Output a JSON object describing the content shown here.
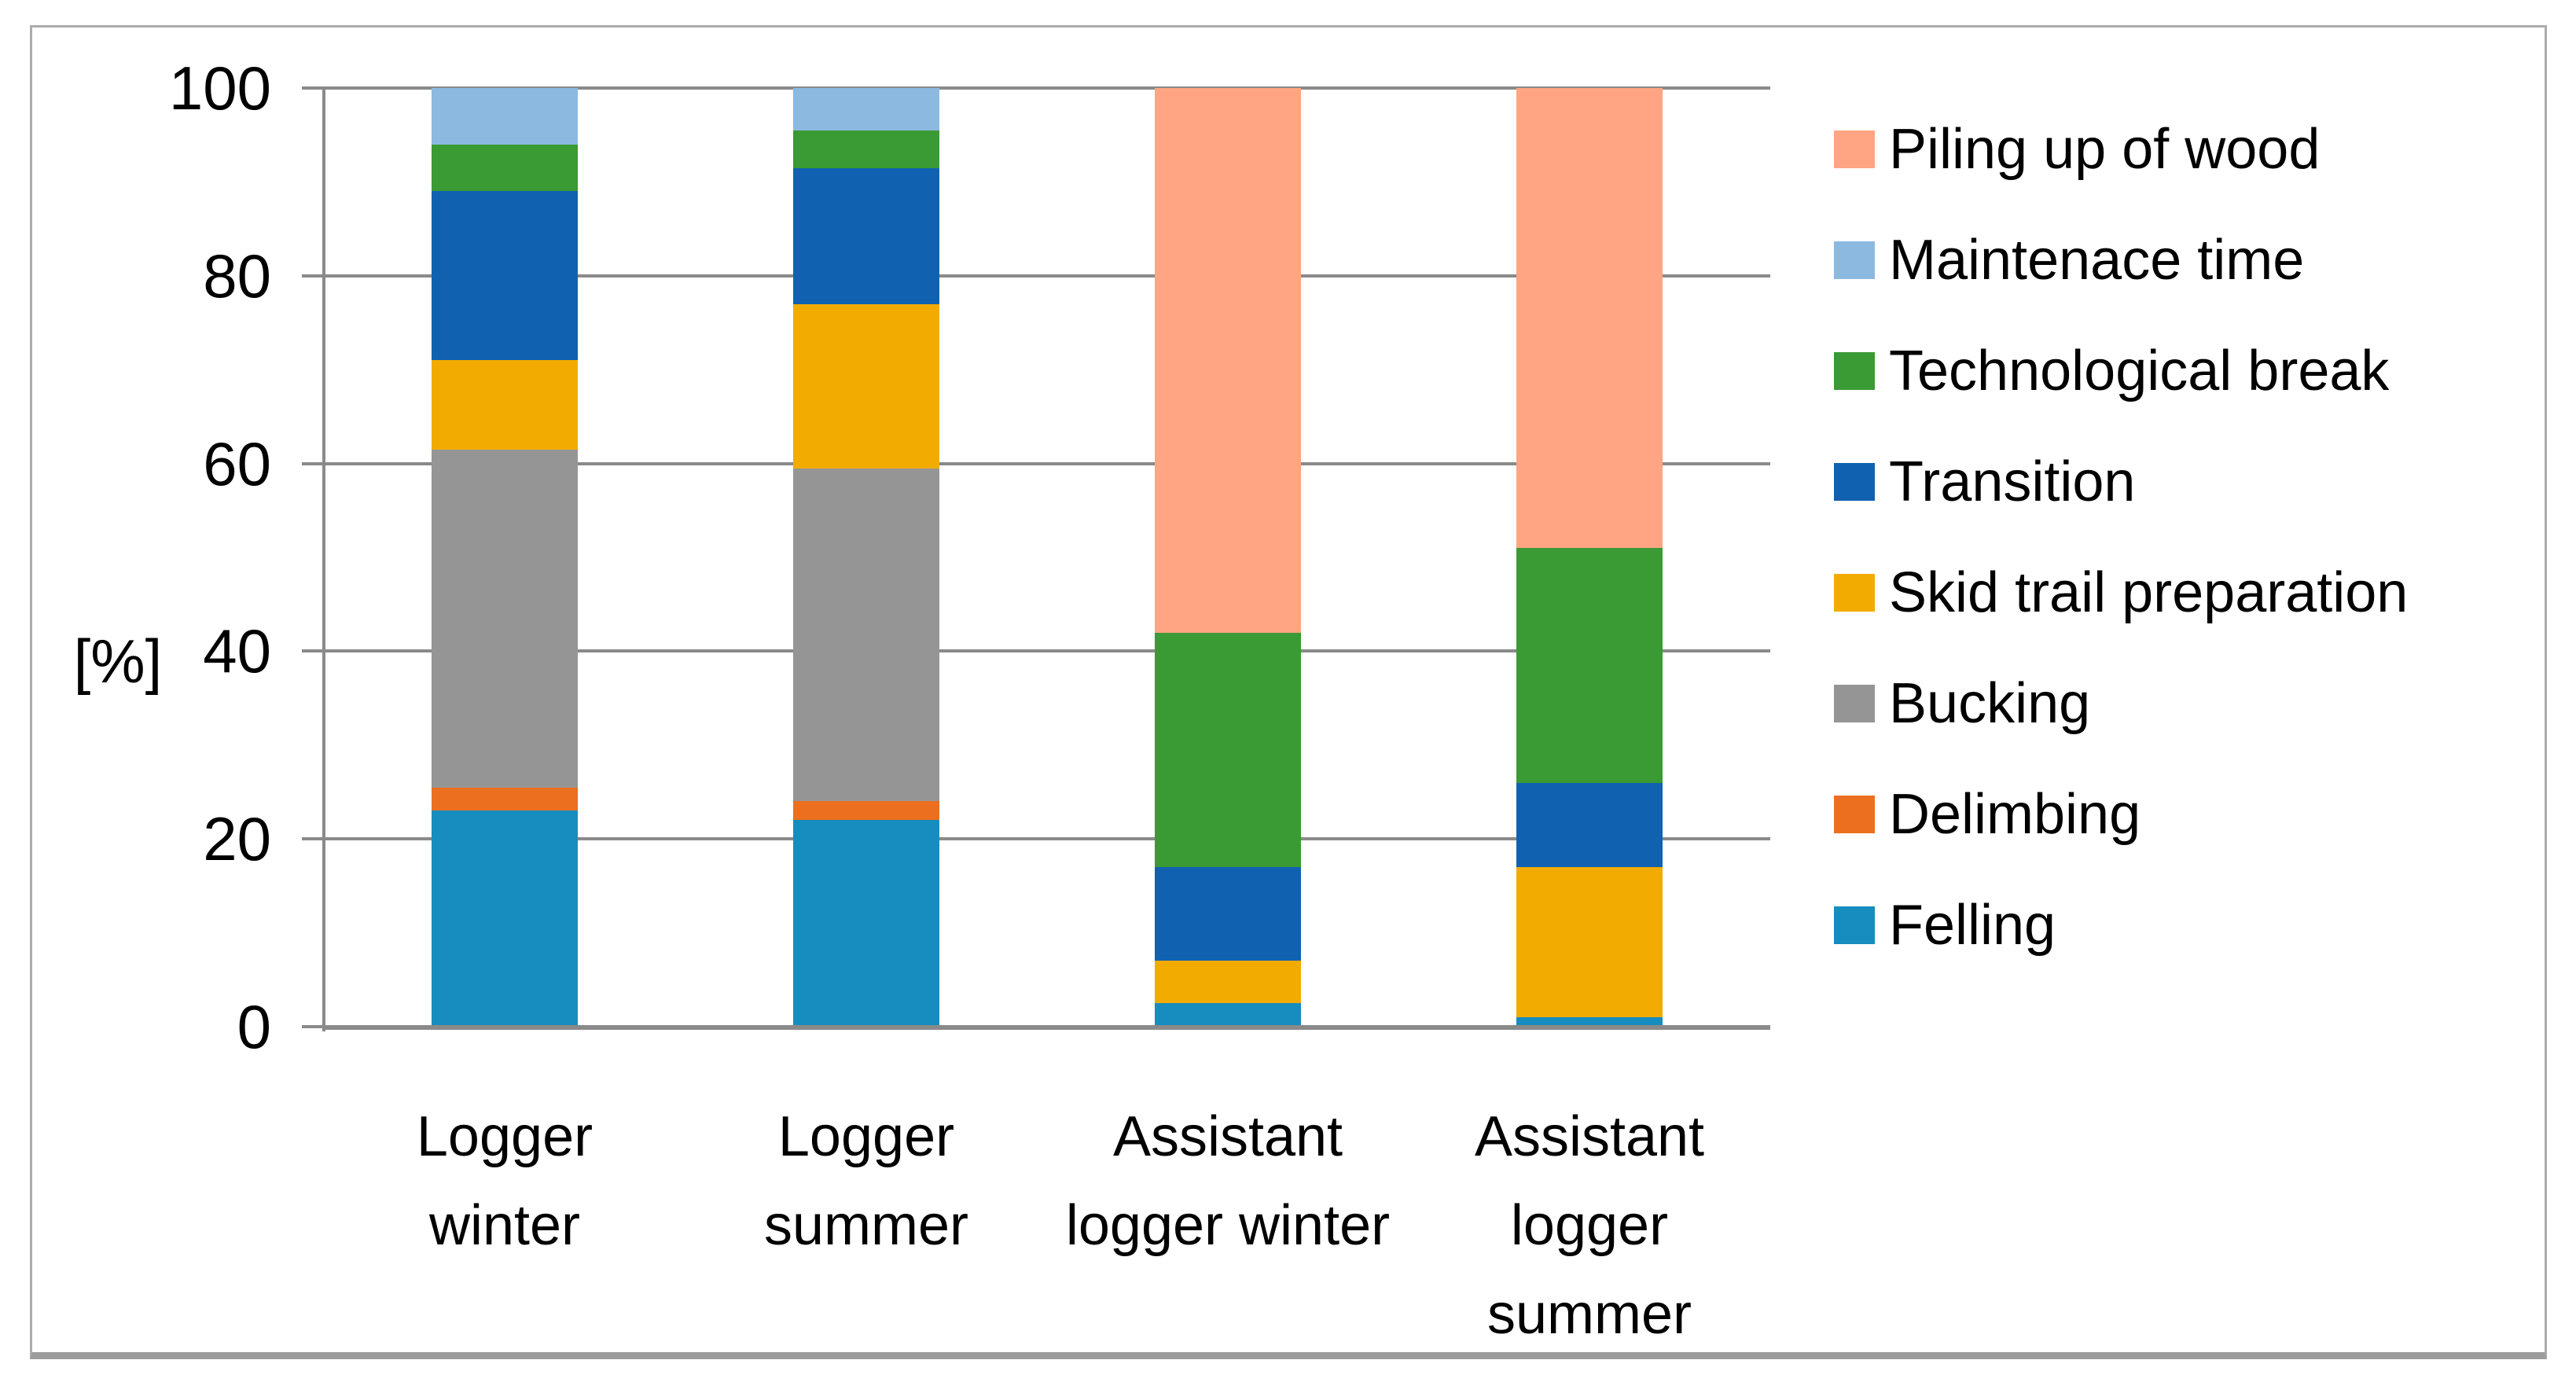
{
  "chart_data": {
    "type": "bar",
    "stacked": true,
    "title": "",
    "ylabel": "[%]",
    "ylim": [
      0,
      100
    ],
    "yticks": [
      0,
      20,
      40,
      60,
      80,
      100
    ],
    "grid": true,
    "legend_position": "right",
    "categories": [
      "Logger winter",
      "Logger summer",
      "Assistant logger winter",
      "Assistant logger summer"
    ],
    "categories_lines": [
      [
        "Logger",
        "winter"
      ],
      [
        "Logger",
        "summer"
      ],
      [
        "Assistant",
        "logger winter"
      ],
      [
        "Assistant",
        "logger",
        "summer"
      ]
    ],
    "series": [
      {
        "name": "Felling",
        "color": "#168DBE",
        "values": [
          23,
          22,
          2.5,
          1
        ]
      },
      {
        "name": "Delimbing",
        "color": "#EB6F1E",
        "values": [
          2.5,
          2,
          0,
          0
        ]
      },
      {
        "name": "Bucking",
        "color": "#959595",
        "values": [
          36,
          35.5,
          0,
          0
        ]
      },
      {
        "name": "Skid trail preparation",
        "color": "#F2AB00",
        "values": [
          9.5,
          17.5,
          4.5,
          16
        ]
      },
      {
        "name": "Transition",
        "color": "#1062B1",
        "values": [
          18,
          14.5,
          10,
          9
        ]
      },
      {
        "name": "Technological break",
        "color": "#3A9A33",
        "values": [
          5,
          4,
          25,
          25
        ]
      },
      {
        "name": "Maintenace time",
        "color": "#8CB9DF",
        "values": [
          6,
          4.5,
          0,
          0
        ]
      },
      {
        "name": "Piling up of wood",
        "color": "#FFA584",
        "values": [
          0,
          0,
          58,
          49
        ]
      }
    ],
    "legend_order_top_to_bottom": [
      "Piling up of wood",
      "Maintenace time",
      "Technological break",
      "Transition",
      "Skid trail preparation",
      "Bucking",
      "Delimbing",
      "Felling"
    ]
  },
  "colors": {
    "gridline": "#8A8A8A",
    "axis_line": "#8A8A8A",
    "frame_border": "#ABABAB",
    "frame_bottom": "#9C9C9C",
    "text": "#000000",
    "background": "#FFFFFF"
  }
}
